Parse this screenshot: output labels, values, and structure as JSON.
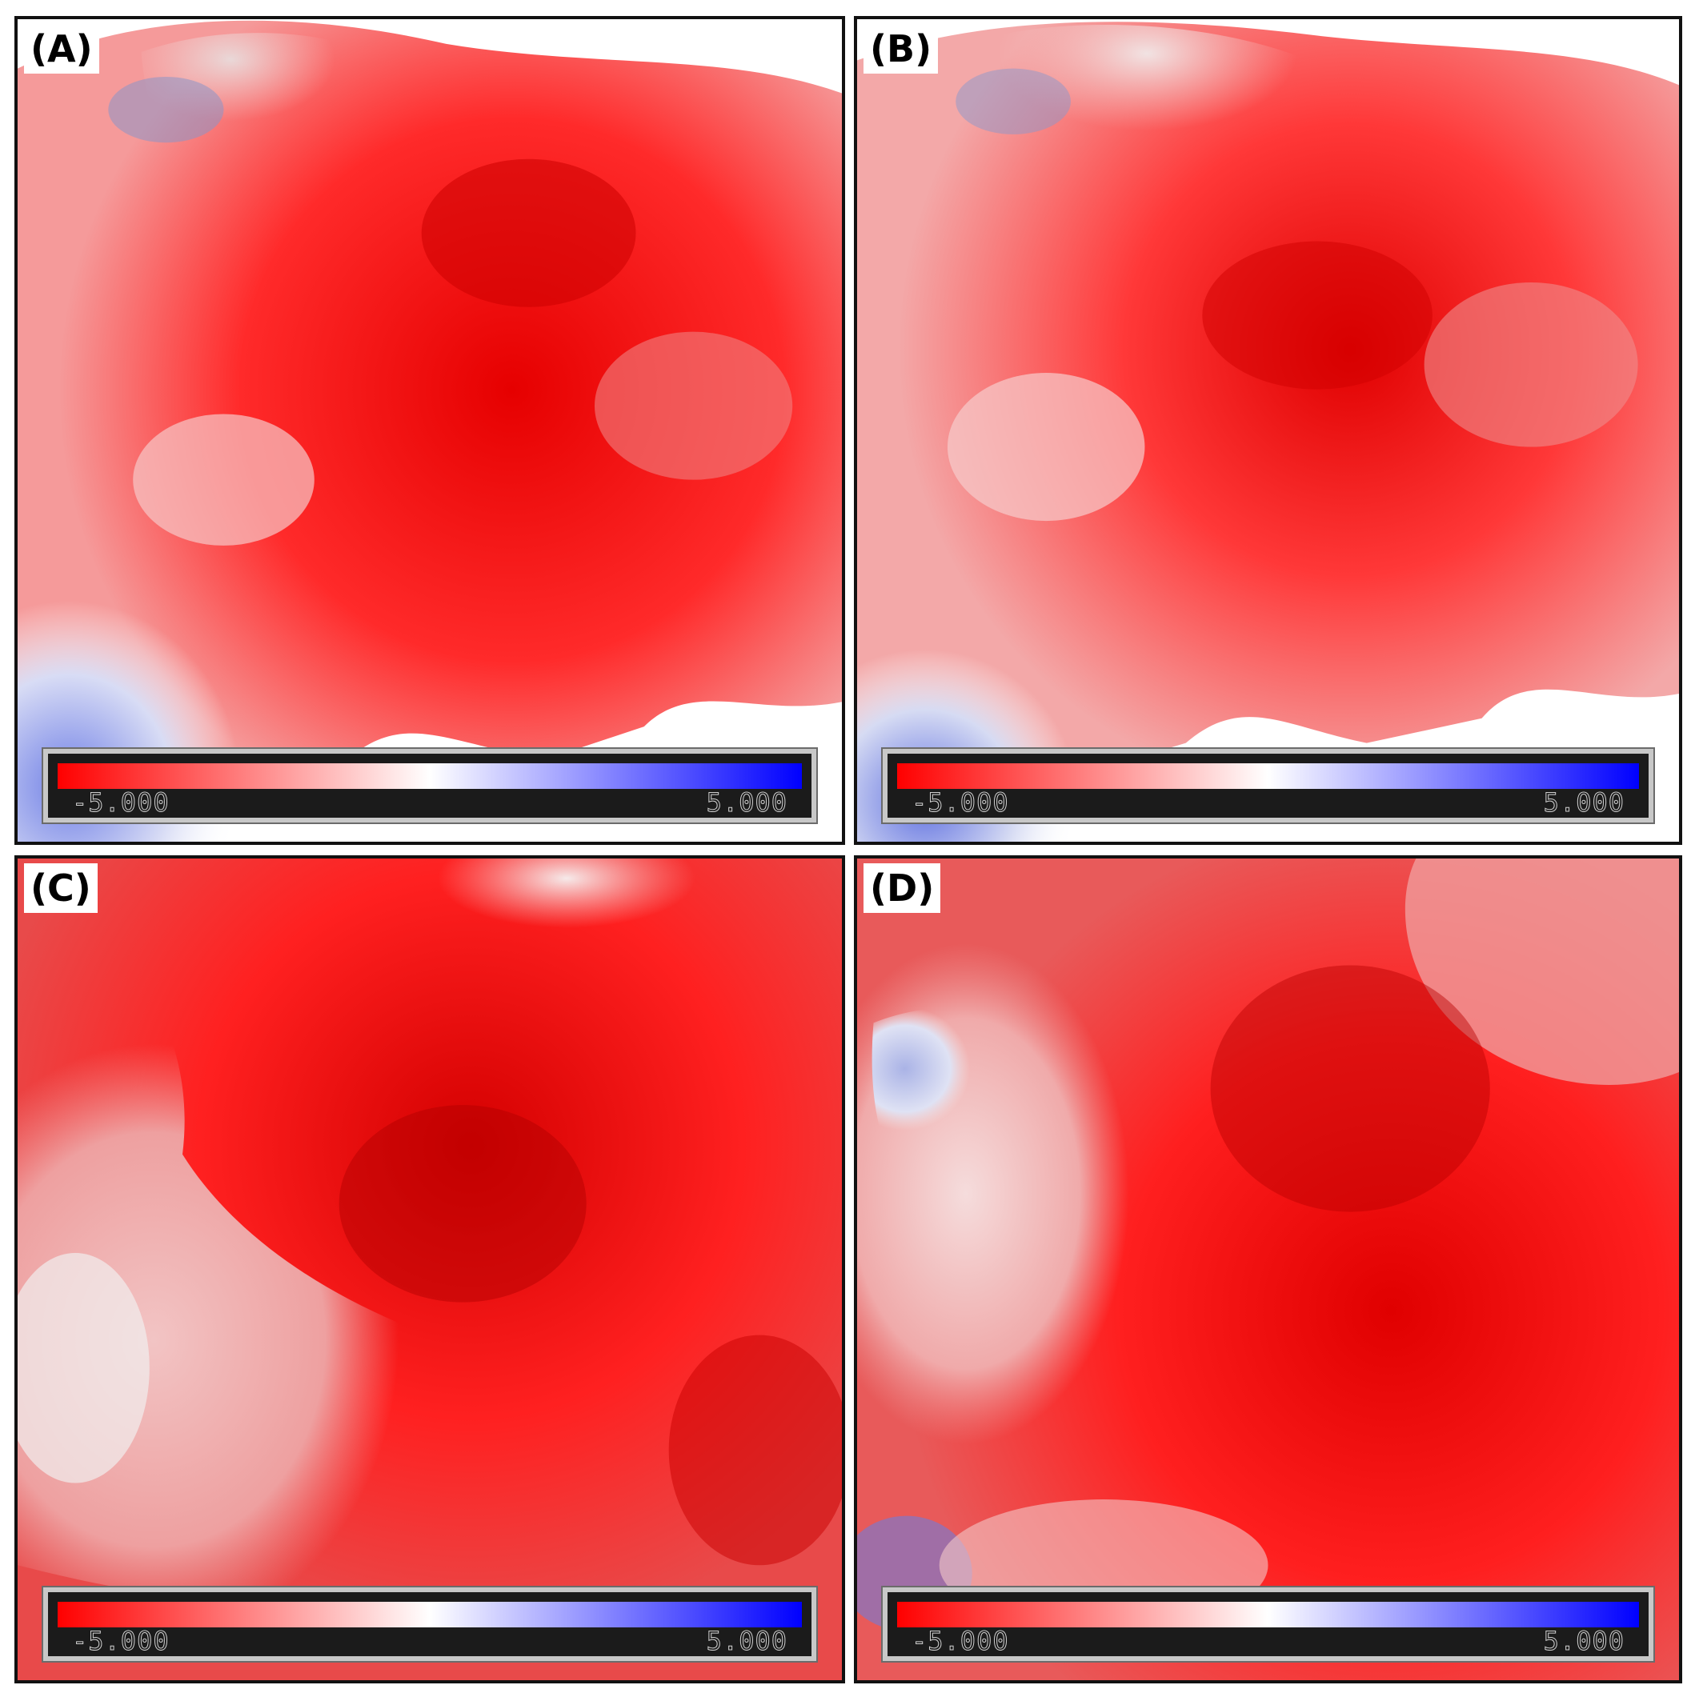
{
  "panels": [
    {
      "label": "(A)",
      "colorbar": {
        "min_label": "-5.000",
        "max_label": "5.000"
      }
    },
    {
      "label": "(B)",
      "colorbar": {
        "min_label": "-5.000",
        "max_label": "5.000"
      }
    },
    {
      "label": "(C)",
      "colorbar": {
        "min_label": "-5.000",
        "max_label": "5.000"
      }
    },
    {
      "label": "(D)",
      "colorbar": {
        "min_label": "-5.000",
        "max_label": "5.000"
      }
    }
  ],
  "colors": {
    "negative": "#ff0000",
    "neutral": "#ffffff",
    "positive": "#0000ff"
  }
}
